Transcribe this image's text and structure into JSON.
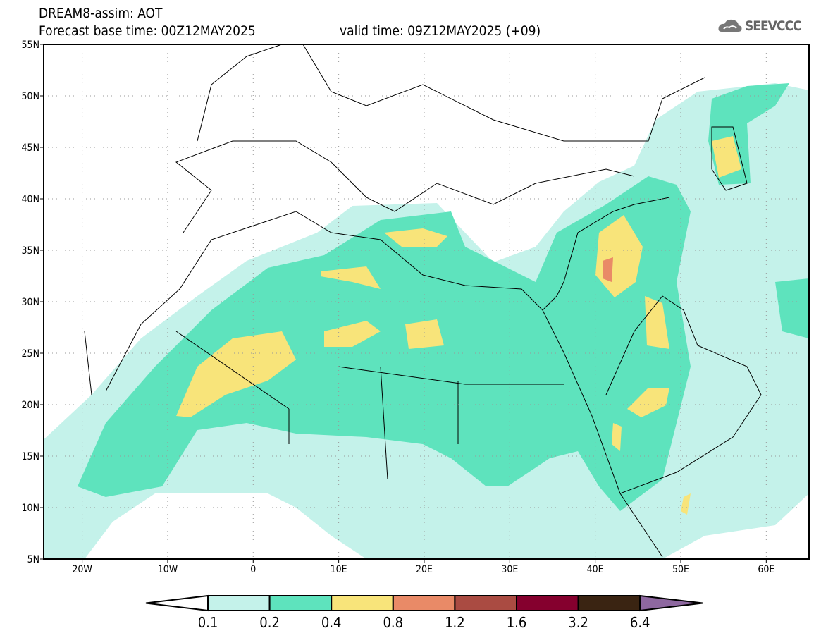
{
  "header": {
    "title": "DREAM8-assim: AOT",
    "base_time": "Forecast base time: 00Z12MAY2025",
    "valid_time": "valid time: 09Z12MAY2025 (+09)",
    "logo_text": "SEEVCCC"
  },
  "map": {
    "lon_range": [
      -24.5,
      65
    ],
    "lat_range": [
      5,
      55
    ],
    "lat_labels": [
      {
        "v": 55,
        "t": "55N"
      },
      {
        "v": 50,
        "t": "50N"
      },
      {
        "v": 45,
        "t": "45N"
      },
      {
        "v": 40,
        "t": "40N"
      },
      {
        "v": 35,
        "t": "35N"
      },
      {
        "v": 30,
        "t": "30N"
      },
      {
        "v": 25,
        "t": "25N"
      },
      {
        "v": 20,
        "t": "20N"
      },
      {
        "v": 15,
        "t": "15N"
      },
      {
        "v": 10,
        "t": "10N"
      },
      {
        "v": 5,
        "t": "5N"
      }
    ],
    "lon_labels": [
      {
        "v": -20,
        "t": "20W"
      },
      {
        "v": -10,
        "t": "10W"
      },
      {
        "v": 0,
        "t": "0"
      },
      {
        "v": 10,
        "t": "10E"
      },
      {
        "v": 20,
        "t": "20E"
      },
      {
        "v": 30,
        "t": "30E"
      },
      {
        "v": 40,
        "t": "40E"
      },
      {
        "v": 50,
        "t": "50E"
      },
      {
        "v": 60,
        "t": "60E"
      }
    ]
  },
  "colorbar": {
    "labels": [
      "0.1",
      "0.2",
      "0.4",
      "0.8",
      "1.2",
      "1.6",
      "3.2",
      "6.4"
    ],
    "colors": [
      "#ffffff",
      "#c4f2ea",
      "#5ee3bd",
      "#f8e47a",
      "#e98a67",
      "#aa4b42",
      "#85002e",
      "#3a2412",
      "#8e68a0"
    ]
  }
}
